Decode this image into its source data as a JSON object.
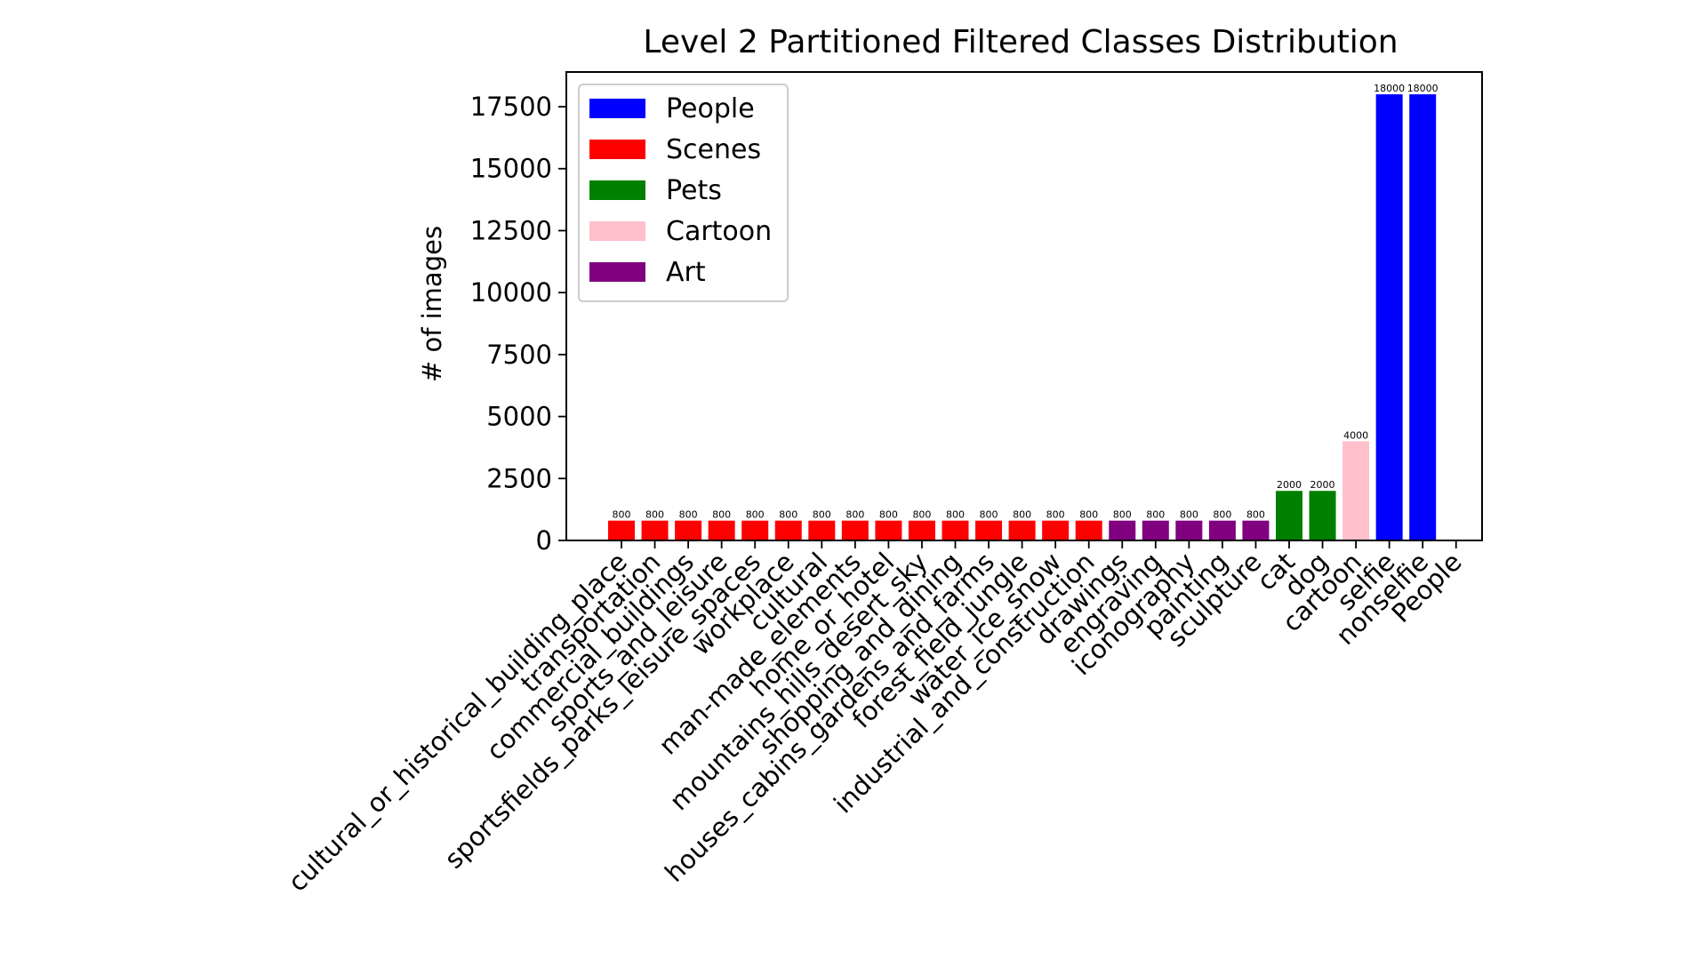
{
  "chart_data": {
    "type": "bar",
    "title": "Level 2 Partitioned Filtered Classes Distribution",
    "xlabel": "",
    "ylabel": "# of images",
    "ylim": [
      0,
      18900
    ],
    "yticks": [
      0,
      2500,
      5000,
      7500,
      10000,
      12500,
      15000,
      17500
    ],
    "grid": false,
    "legend_position": "top-left",
    "legend": [
      {
        "name": "People",
        "color": "#0000ff"
      },
      {
        "name": "Scenes",
        "color": "#ff0000"
      },
      {
        "name": "Pets",
        "color": "#008000"
      },
      {
        "name": "Cartoon",
        "color": "#ffc0cb"
      },
      {
        "name": "Art",
        "color": "#800080"
      }
    ],
    "categories": [
      "cultural_or_historical_building_place",
      "transportation",
      "commercial_buildings",
      "sports_and_leisure",
      "sportsfields_parks_leisure_spaces",
      "workplace",
      "cultural",
      "man-made_elements",
      "home_or_hotel",
      "mountains_hills_desert_sky",
      "shopping_and_dining",
      "houses_cabins_gardens_and_farms",
      "forest_field_jungle",
      "water_ice_snow",
      "industrial_and_construction",
      "drawings",
      "engraving",
      "iconography",
      "painting",
      "sculpture",
      "cat",
      "dog",
      "cartoon",
      "selfie",
      "nonselfie",
      "People"
    ],
    "values": [
      800,
      800,
      800,
      800,
      800,
      800,
      800,
      800,
      800,
      800,
      800,
      800,
      800,
      800,
      800,
      800,
      800,
      800,
      800,
      800,
      2000,
      2000,
      4000,
      18000,
      18000,
      null
    ],
    "value_labels": [
      "800",
      "800",
      "800",
      "800",
      "800",
      "800",
      "800",
      "800",
      "800",
      "800",
      "800",
      "800",
      "800",
      "800",
      "800",
      "800",
      "800",
      "800",
      "800",
      "800",
      "2000",
      "2000",
      "4000",
      "18000",
      "18000",
      ""
    ],
    "bar_colors": [
      "#ff0000",
      "#ff0000",
      "#ff0000",
      "#ff0000",
      "#ff0000",
      "#ff0000",
      "#ff0000",
      "#ff0000",
      "#ff0000",
      "#ff0000",
      "#ff0000",
      "#ff0000",
      "#ff0000",
      "#ff0000",
      "#ff0000",
      "#800080",
      "#800080",
      "#800080",
      "#800080",
      "#800080",
      "#008000",
      "#008000",
      "#ffc0cb",
      "#0000ff",
      "#0000ff",
      ""
    ]
  }
}
